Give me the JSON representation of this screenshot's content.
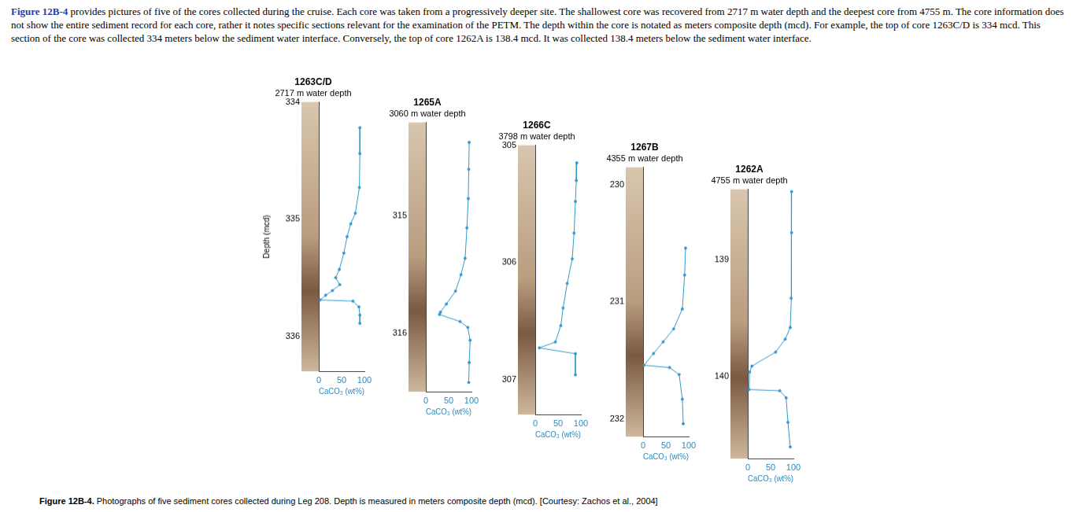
{
  "paragraph": {
    "link": "Figure 12B-4",
    "body": " provides pictures of five of the cores collected during the cruise. Each core was taken from a progressively deeper site. The shallowest core was recovered from 2717 m water depth and the deepest core from 4755 m. The core information does not show the entire sediment record for each core, rather it notes specific sections relevant for the examination of the PETM. The depth within the core is notated as meters composite depth (mcd). For example, the top of core 1263C/D is 334 mcd. This section of the core was collected 334 meters below the sediment water interface. Conversely, the top of core 1262A is 138.4 mcd. It was collected 138.4 meters below the sediment water interface."
  },
  "caption": {
    "label": "Figure 12B-4.",
    "text": " Photographs of five sediment cores collected during Leg 208. Depth is measured in meters composite depth (mcd). [Courtesy: Zachos et al., 2004]"
  },
  "chart_data": [
    {
      "type": "line",
      "title": "1263C/D",
      "subtitle": "2717 m water depth",
      "x_label": "CaCO₃ (wt%)",
      "y_label": "Depth (mcd)",
      "x": [
        90,
        90,
        89,
        80,
        70,
        62,
        55,
        45,
        37,
        46,
        30,
        15,
        3,
        75,
        88,
        90,
        90
      ],
      "y": [
        334.22,
        334.44,
        334.73,
        334.95,
        335.04,
        335.15,
        335.29,
        335.43,
        335.5,
        335.56,
        335.61,
        335.65,
        335.69,
        335.7,
        335.75,
        335.82,
        335.89
      ],
      "xlim": [
        0,
        100
      ],
      "xticks": [
        0,
        50,
        100
      ],
      "ylim": [
        334,
        336.3
      ],
      "yticks": [
        334,
        335,
        336
      ],
      "color": "#3399cc",
      "marker": "circle",
      "grid": false
    },
    {
      "type": "line",
      "title": "1265A",
      "subtitle": "3060 m water depth",
      "x_label": "CaCO₃ (wt%)",
      "x": [
        95,
        94,
        93,
        90,
        86,
        77,
        65,
        45,
        32,
        30,
        75,
        92,
        97,
        95,
        94
      ],
      "y": [
        314.37,
        314.6,
        314.85,
        315.1,
        315.36,
        315.5,
        315.64,
        315.75,
        315.82,
        315.84,
        315.9,
        315.95,
        316.06,
        316.25,
        316.42
      ],
      "xlim": [
        0,
        100
      ],
      "xticks": [
        0,
        50,
        100
      ],
      "ylim": [
        314.2,
        316.5
      ],
      "yticks": [
        315,
        316
      ],
      "color": "#3399cc",
      "marker": "circle",
      "grid": false
    },
    {
      "type": "line",
      "title": "1266C",
      "subtitle": "3798 m water depth",
      "x_label": "CaCO₃ (wt%)",
      "x": [
        91,
        90,
        88,
        85,
        81,
        70,
        61,
        56,
        44,
        9,
        88,
        88
      ],
      "y": [
        305.15,
        305.3,
        305.48,
        305.75,
        305.97,
        306.18,
        306.39,
        306.54,
        306.68,
        306.73,
        306.78,
        306.96
      ],
      "xlim": [
        0,
        100
      ],
      "xticks": [
        0,
        50,
        100
      ],
      "ylim": [
        305,
        307.3
      ],
      "yticks": [
        305,
        306,
        307
      ],
      "color": "#3399cc",
      "marker": "circle",
      "grid": false
    },
    {
      "type": "line",
      "title": "1267B",
      "subtitle": "4355 m water depth",
      "x_label": "CaCO₃ (wt%)",
      "x": [
        93,
        91,
        86,
        67,
        44,
        23,
        2,
        58,
        79,
        86,
        88
      ],
      "y": [
        230.54,
        230.77,
        231.06,
        231.23,
        231.34,
        231.44,
        231.54,
        231.56,
        231.62,
        231.83,
        232.04
      ],
      "xlim": [
        0,
        100
      ],
      "xticks": [
        0,
        50,
        100
      ],
      "ylim": [
        229.85,
        232.15
      ],
      "yticks": [
        230,
        231,
        232
      ],
      "color": "#3399cc",
      "marker": "circle",
      "grid": false
    },
    {
      "type": "line",
      "title": "1262A",
      "subtitle": "4755 m water depth",
      "x_label": "CaCO₃ (wt%)",
      "x": [
        96,
        96,
        95,
        93,
        82,
        61,
        9,
        4,
        3,
        70,
        84,
        88,
        93
      ],
      "y": [
        138.42,
        138.77,
        139.33,
        139.58,
        139.68,
        139.79,
        139.91,
        139.96,
        140.11,
        140.12,
        140.18,
        140.39,
        140.6
      ],
      "xlim": [
        0,
        100
      ],
      "xticks": [
        0,
        50,
        100
      ],
      "ylim": [
        138.4,
        140.7
      ],
      "yticks": [
        139,
        140
      ],
      "color": "#3399cc",
      "marker": "circle",
      "grid": false
    }
  ]
}
